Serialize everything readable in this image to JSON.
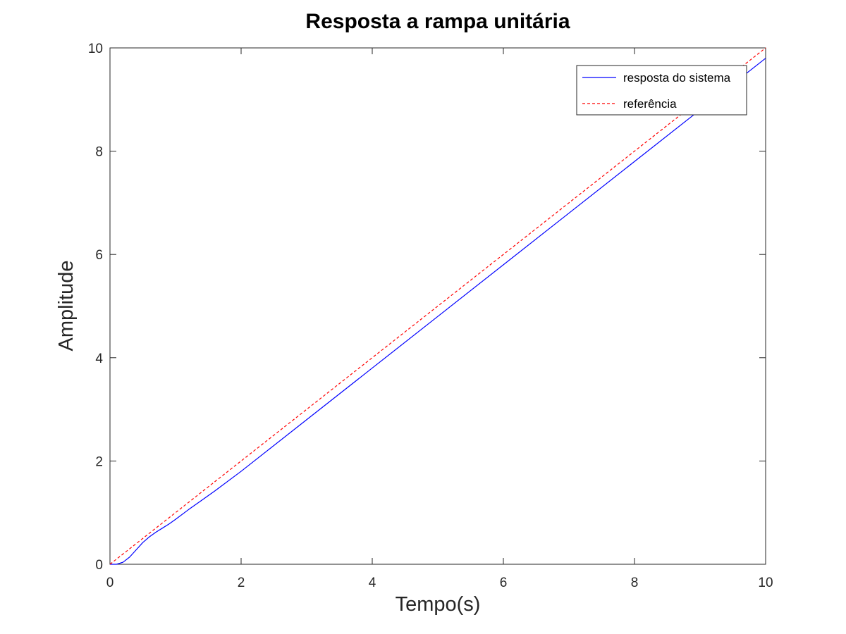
{
  "chart_data": {
    "type": "line",
    "title": "Resposta a rampa unitária",
    "xlabel": "Tempo(s)",
    "ylabel": "Amplitude",
    "xlim": [
      0,
      10
    ],
    "ylim": [
      0,
      10
    ],
    "xticks": [
      "0",
      "2",
      "4",
      "6",
      "8",
      "10"
    ],
    "yticks": [
      "0",
      "2",
      "4",
      "6",
      "8",
      "10"
    ],
    "grid": false,
    "legend_position": "top-right",
    "series": [
      {
        "name": "resposta do sistema",
        "color": "#0000ff",
        "style": "solid",
        "x": [
          0,
          0.1,
          0.2,
          0.3,
          0.4,
          0.5,
          0.6,
          0.7,
          0.8,
          0.9,
          1.0,
          1.2,
          1.4,
          1.6,
          2.0,
          3.0,
          4.0,
          5.0,
          6.0,
          7.0,
          8.0,
          9.0,
          10.0
        ],
        "y": [
          0,
          0.0,
          0.04,
          0.14,
          0.28,
          0.42,
          0.53,
          0.62,
          0.7,
          0.78,
          0.87,
          1.06,
          1.24,
          1.42,
          1.8,
          2.8,
          3.8,
          4.8,
          5.8,
          6.8,
          7.8,
          8.8,
          9.8
        ]
      },
      {
        "name": "referência",
        "color": "#ff0000",
        "style": "dashed",
        "x": [
          0,
          10
        ],
        "y": [
          0,
          10
        ]
      }
    ]
  }
}
